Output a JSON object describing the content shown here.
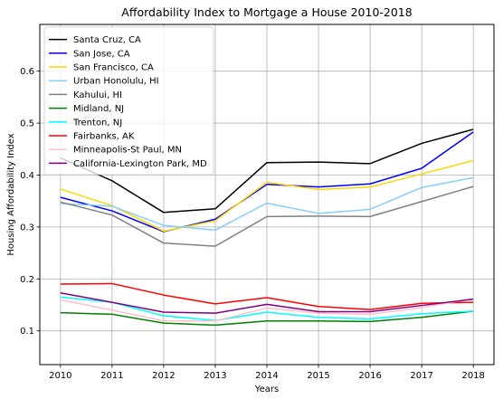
{
  "chart_data": {
    "type": "line",
    "title": "Affordability Index to Mortgage a House 2010-2018",
    "xlabel": "Years",
    "ylabel": "Housing Affordability Index",
    "x": [
      2010,
      2011,
      2012,
      2013,
      2014,
      2015,
      2016,
      2017,
      2018
    ],
    "x_ticks": [
      "2010",
      "2011",
      "2012",
      "2013",
      "2014",
      "2015",
      "2016",
      "2017",
      "2018"
    ],
    "xlim": [
      2009.6,
      2018.4
    ],
    "y_ticks": [
      "0.1",
      "0.2",
      "0.3",
      "0.4",
      "0.5",
      "0.6"
    ],
    "ylim": [
      0.035,
      0.69
    ],
    "grid": true,
    "legend_position": "top-left",
    "series": [
      {
        "name": "Santa Cruz, CA",
        "color": "#000000",
        "values": [
          0.433,
          0.389,
          0.328,
          0.335,
          0.424,
          0.425,
          0.422,
          0.461,
          0.488
        ]
      },
      {
        "name": "San Jose, CA",
        "color": "#0000ff",
        "values": [
          0.357,
          0.331,
          0.291,
          0.315,
          0.382,
          0.377,
          0.383,
          0.413,
          0.483
        ]
      },
      {
        "name": "San Francisco, CA",
        "color": "#ffd700",
        "values": [
          0.373,
          0.341,
          0.292,
          0.312,
          0.386,
          0.372,
          0.377,
          0.402,
          0.428
        ]
      },
      {
        "name": "Urban Honolulu, HI",
        "color": "#87cefa",
        "values": [
          0.345,
          0.34,
          0.303,
          0.294,
          0.346,
          0.326,
          0.334,
          0.376,
          0.395
        ]
      },
      {
        "name": "Kahului, HI",
        "color": "#808080",
        "values": [
          0.348,
          0.323,
          0.269,
          0.263,
          0.32,
          0.321,
          0.32,
          0.349,
          0.378
        ]
      },
      {
        "name": "Midland, NJ",
        "color": "#008000",
        "values": [
          0.135,
          0.132,
          0.115,
          0.111,
          0.119,
          0.119,
          0.118,
          0.126,
          0.138
        ]
      },
      {
        "name": "Trenton, NJ",
        "color": "#00ffff",
        "values": [
          0.165,
          0.155,
          0.129,
          0.12,
          0.136,
          0.126,
          0.123,
          0.133,
          0.138
        ]
      },
      {
        "name": "Fairbanks, AK",
        "color": "#ff0000",
        "values": [
          0.19,
          0.191,
          0.169,
          0.152,
          0.164,
          0.147,
          0.141,
          0.153,
          0.155
        ]
      },
      {
        "name": "Minneapolis-St Paul, MN",
        "color": "#ffc0cb",
        "values": [
          0.16,
          0.14,
          0.119,
          0.119,
          0.144,
          0.134,
          0.132,
          0.145,
          0.162
        ]
      },
      {
        "name": "California-Lexington Park, MD",
        "color": "#800080",
        "values": [
          0.173,
          0.155,
          0.136,
          0.134,
          0.151,
          0.137,
          0.137,
          0.149,
          0.161
        ]
      }
    ]
  }
}
